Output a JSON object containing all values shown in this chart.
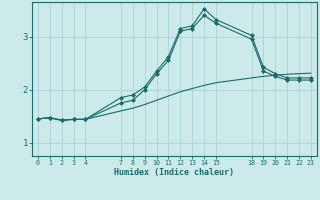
{
  "xlabel": "Humidex (Indice chaleur)",
  "background_color": "#cceaea",
  "line_color": "#1a6b6b",
  "grid_color": "#aad4d4",
  "xticks": [
    0,
    1,
    2,
    3,
    4,
    7,
    8,
    9,
    10,
    11,
    12,
    13,
    14,
    15,
    18,
    19,
    20,
    21,
    22,
    23
  ],
  "yticks": [
    1,
    2,
    3
  ],
  "xlim": [
    -0.5,
    23.5
  ],
  "ylim": [
    0.75,
    3.65
  ],
  "line1_x": [
    0,
    1,
    2,
    3,
    4,
    7,
    8,
    9,
    10,
    11,
    12,
    13,
    14,
    15,
    18,
    19,
    20,
    21,
    22,
    23
  ],
  "line1_y": [
    1.45,
    1.47,
    1.42,
    1.44,
    1.44,
    1.85,
    1.9,
    2.05,
    2.35,
    2.62,
    3.15,
    3.2,
    3.52,
    3.32,
    3.02,
    2.42,
    2.3,
    2.22,
    2.22,
    2.22
  ],
  "line2_x": [
    0,
    1,
    2,
    3,
    4,
    7,
    8,
    9,
    10,
    11,
    12,
    13,
    14,
    15,
    18,
    19,
    20,
    21,
    22,
    23
  ],
  "line2_y": [
    1.45,
    1.47,
    1.42,
    1.44,
    1.44,
    1.75,
    1.8,
    2.0,
    2.3,
    2.55,
    3.1,
    3.15,
    3.4,
    3.25,
    2.95,
    2.35,
    2.25,
    2.18,
    2.18,
    2.18
  ],
  "line3_x": [
    0,
    1,
    2,
    3,
    4,
    7,
    8,
    9,
    10,
    11,
    12,
    13,
    14,
    15,
    18,
    19,
    20,
    21,
    22,
    23
  ],
  "line3_y": [
    1.45,
    1.47,
    1.43,
    1.44,
    1.44,
    1.6,
    1.65,
    1.72,
    1.8,
    1.88,
    1.96,
    2.02,
    2.08,
    2.13,
    2.22,
    2.25,
    2.27,
    2.29,
    2.3,
    2.31
  ]
}
